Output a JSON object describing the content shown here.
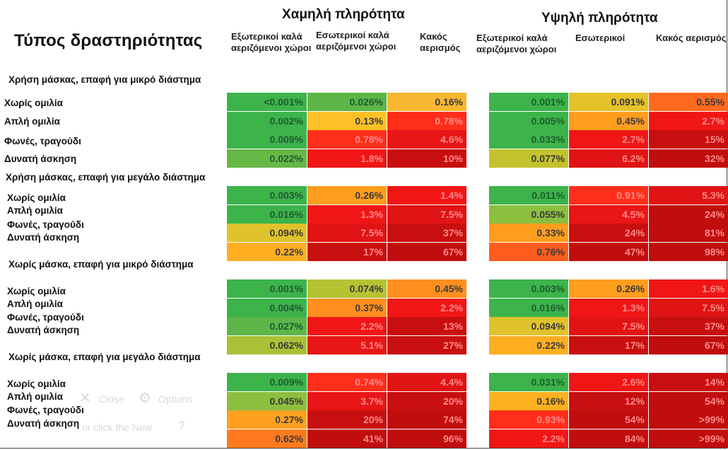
{
  "header": {
    "title": "Τύπος δραστηριότητας",
    "low_group": "Χαμηλή πληρότητα",
    "high_group": "Υψηλή πληρότητα",
    "columns": [
      "Εξωτερικοί καλά αεριζόμενοι χώροι",
      "Εσωτερικοί καλά αεριζόμενοι χώροι",
      "Κακός αερισμός",
      "Εξωτερικοί καλά αεριζόμενοι χώροι",
      "Εσωτερικοί",
      "Κακός αερισμός"
    ]
  },
  "sections": [
    {
      "title": "Χρήση μάσκας, επαφή για μικρό διάστημα",
      "labels": [
        "Χωρίς ομιλία",
        "Απλή ομιλία",
        "Φωνές, τραγούδι",
        "Δυνατή άσκηση"
      ],
      "rows": [
        [
          "<0.001%",
          "0.026%",
          "0.16%",
          "0.001%",
          "0.091%",
          "0.55%"
        ],
        [
          "0.002%",
          "0.13%",
          "0.78%",
          "0.005%",
          "0.45%",
          "2.7%"
        ],
        [
          "0.009%",
          "0.78%",
          "4.6%",
          "0.033%",
          "2.7%",
          "15%"
        ],
        [
          "0.022%",
          "1.8%",
          "10%",
          "0.077%",
          "6.2%",
          "32%"
        ]
      ],
      "colors": [
        [
          "#3cb44a",
          "#5cb648",
          "#f7b731",
          "#3cb44a",
          "#e6c22a",
          "#ff6a1e"
        ],
        [
          "#3cb44a",
          "#ffc126",
          "#ff2e1a",
          "#3cb44a",
          "#ff9d1e",
          "#f01616"
        ],
        [
          "#3cb44a",
          "#ff2e1a",
          "#e81616",
          "#3cb44a",
          "#f01616",
          "#c80f0f"
        ],
        [
          "#66b847",
          "#f01616",
          "#c80f0f",
          "#c3c22e",
          "#e01414",
          "#c00d0d"
        ]
      ]
    },
    {
      "title": "Χρήση μάσκας, επαφή για μεγάλο διάστημα",
      "labels": [
        "Χωρίς ομιλία",
        "Απλή ομιλία",
        "Φωνές, τραγούδι",
        "Δυνατή άσκηση"
      ],
      "rows": [
        [
          "0.003%",
          "0.26%",
          "1.4%",
          "0.011%",
          "0.91%",
          "5.3%"
        ],
        [
          "0.016%",
          "1.3%",
          "7.5%",
          "0.055%",
          "4.5%",
          "24%"
        ],
        [
          "0.094%",
          "7.5%",
          "37%",
          "0.33%",
          "24%",
          "81%"
        ],
        [
          "0.22%",
          "17%",
          "67%",
          "0.76%",
          "47%",
          "98%"
        ]
      ],
      "colors": [
        [
          "#3cb44a",
          "#ff9d1e",
          "#f01616",
          "#3cb44a",
          "#ff2e1a",
          "#e01414"
        ],
        [
          "#3cb44a",
          "#f01616",
          "#e01414",
          "#8dbf3f",
          "#e81616",
          "#c00d0d"
        ],
        [
          "#e0c32c",
          "#e01414",
          "#c80f0f",
          "#ff9d1e",
          "#c80f0f",
          "#c00d0d"
        ],
        [
          "#ffae22",
          "#c80f0f",
          "#c00d0d",
          "#ff5c1e",
          "#c00d0d",
          "#c00d0d"
        ]
      ]
    },
    {
      "title": "Χωρίς μάσκα, επαφή για μικρό διάστημα",
      "labels": [
        "Χωρίς ομιλία",
        "Απλή ομιλία",
        "Φωνές, τραγούδι",
        "Δυνατή άσκηση"
      ],
      "rows": [
        [
          "0.001%",
          "0.074%",
          "0.45%",
          "0.003%",
          "0.26%",
          "1.6%"
        ],
        [
          "0.004%",
          "0.37%",
          "2.2%",
          "0.016%",
          "1.3%",
          "7.5%"
        ],
        [
          "0.027%",
          "2.2%",
          "13%",
          "0.094%",
          "7.5%",
          "37%"
        ],
        [
          "0.062%",
          "5.1%",
          "27%",
          "0.22%",
          "17%",
          "67%"
        ]
      ],
      "colors": [
        [
          "#3cb44a",
          "#b7c233",
          "#ff8f1e",
          "#3cb44a",
          "#ff9d1e",
          "#f01616"
        ],
        [
          "#3cb44a",
          "#ff8f1e",
          "#f01616",
          "#3cb44a",
          "#f01616",
          "#e01414"
        ],
        [
          "#5cb648",
          "#f01616",
          "#c80f0f",
          "#e0c32c",
          "#e01414",
          "#c80f0f"
        ],
        [
          "#a9c136",
          "#e81616",
          "#c80f0f",
          "#ffae22",
          "#c80f0f",
          "#c00d0d"
        ]
      ]
    },
    {
      "title": "Χωρίς μάσκα, επαφή για μεγάλο διάστημα",
      "labels": [
        "Χωρίς ομιλία",
        "Απλή ομιλία",
        "Φωνές, τραγούδι",
        "Δυνατή άσκηση"
      ],
      "rows": [
        [
          "0.009%",
          "0.74%",
          "4.4%",
          "0.031%",
          "2.6%",
          "14%"
        ],
        [
          "0.045%",
          "3.7%",
          "20%",
          "0.16%",
          "12%",
          "54%"
        ],
        [
          "0.27%",
          "20%",
          "74%",
          "0.93%",
          "54%",
          ">99%"
        ],
        [
          "0.62%",
          "41%",
          "96%",
          "2.2%",
          "84%",
          ">99%"
        ]
      ],
      "colors": [
        [
          "#3cb44a",
          "#ff2e1a",
          "#e01414",
          "#3cb44a",
          "#f01616",
          "#c80f0f"
        ],
        [
          "#8dbf3f",
          "#e81616",
          "#c80f0f",
          "#ffb020",
          "#c80f0f",
          "#c00d0d"
        ],
        [
          "#ffa01e",
          "#c80f0f",
          "#c00d0d",
          "#ff2e1a",
          "#c00d0d",
          "#c00d0d"
        ],
        [
          "#ff7a1e",
          "#c00d0d",
          "#c00d0d",
          "#f01616",
          "#c00d0d",
          "#c00d0d"
        ]
      ]
    }
  ],
  "ghost_overlay": {
    "close_label": "Close",
    "options_label": "Options",
    "hint_text": "or click the New"
  }
}
